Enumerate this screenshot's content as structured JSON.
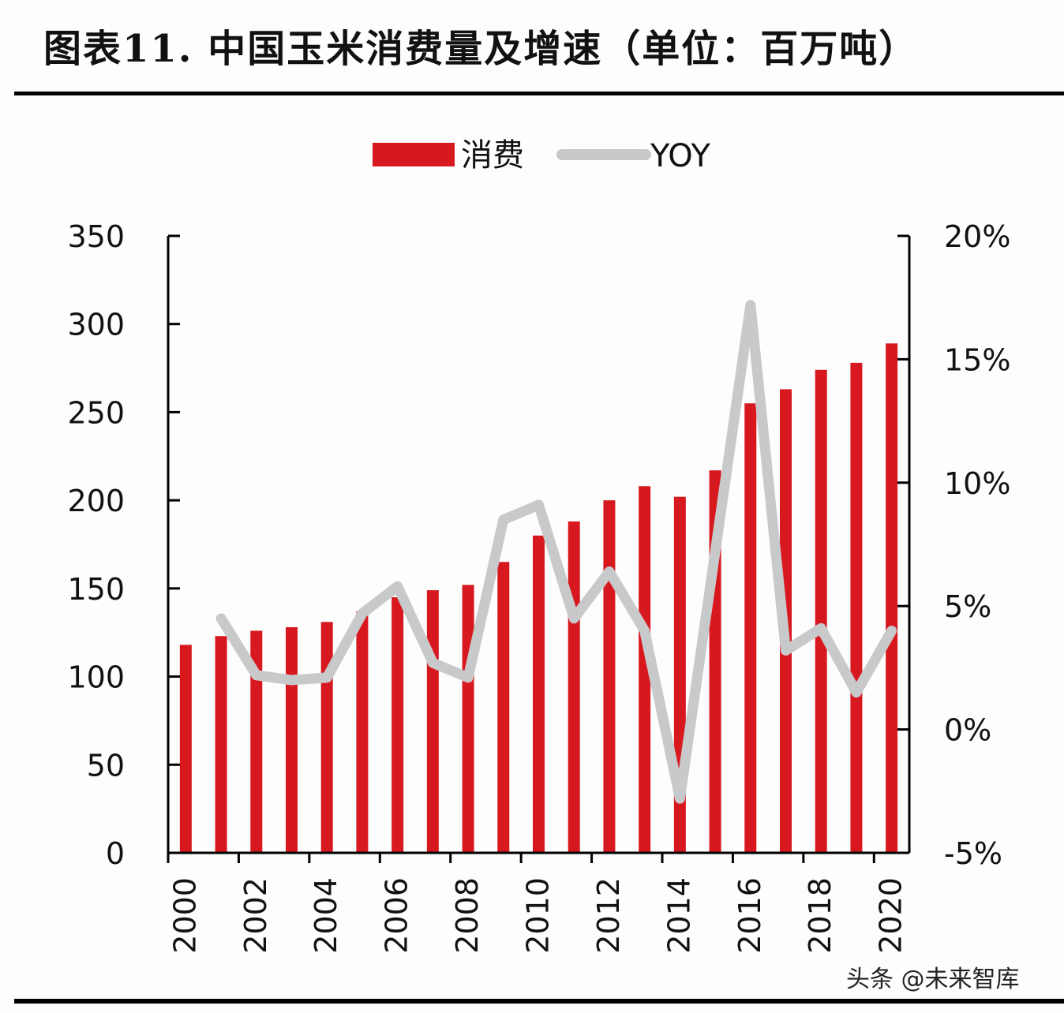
{
  "page": {
    "title": "图表11. 中国玉米消费量及增速（单位：百万吨）",
    "watermark": "头条 @未来智库"
  },
  "colors": {
    "bar": "#d7191f",
    "line": "#c8c9cb",
    "axis": "#000000"
  },
  "chart_data": {
    "type": "bar",
    "title": "中国玉米消费量及增速（单位：百万吨）",
    "xlabel": "",
    "ylabel": "",
    "categories": [
      "2000",
      "2001",
      "2002",
      "2003",
      "2004",
      "2005",
      "2006",
      "2007",
      "2008",
      "2009",
      "2010",
      "2011",
      "2012",
      "2013",
      "2014",
      "2015",
      "2016",
      "2017",
      "2018",
      "2019",
      "2020"
    ],
    "x_tick_labels": [
      "2000",
      "2002",
      "2004",
      "2006",
      "2008",
      "2010",
      "2012",
      "2014",
      "2016",
      "2018",
      "2020"
    ],
    "series": [
      {
        "name": "消费",
        "type": "bar",
        "axis": "left",
        "values": [
          118,
          123,
          126,
          128,
          131,
          137,
          145,
          149,
          152,
          165,
          180,
          188,
          200,
          208,
          202,
          217,
          255,
          263,
          274,
          278,
          289
        ]
      },
      {
        "name": "YOY",
        "type": "line",
        "axis": "right",
        "unit": "%",
        "values": [
          null,
          4.5,
          2.2,
          2.0,
          2.1,
          4.7,
          5.8,
          2.7,
          2.1,
          8.5,
          9.1,
          4.5,
          6.4,
          4.0,
          -2.8,
          7.2,
          17.2,
          3.2,
          4.1,
          1.5,
          4.0
        ]
      }
    ],
    "ylim": [
      0,
      350
    ],
    "y_ticks": [
      0,
      50,
      100,
      150,
      200,
      250,
      300,
      350
    ],
    "y_tick_labels": [
      "0",
      "50",
      "100",
      "150",
      "200",
      "250",
      "300",
      "350"
    ],
    "y2lim": [
      -5,
      20
    ],
    "y2_ticks": [
      -5,
      0,
      5,
      10,
      15,
      20
    ],
    "y2_tick_labels": [
      "-5%",
      "0%",
      "5%",
      "10%",
      "15%",
      "20%"
    ],
    "legend": {
      "position": "top-center",
      "entries": [
        "消费",
        "YOY"
      ]
    },
    "grid": false
  }
}
